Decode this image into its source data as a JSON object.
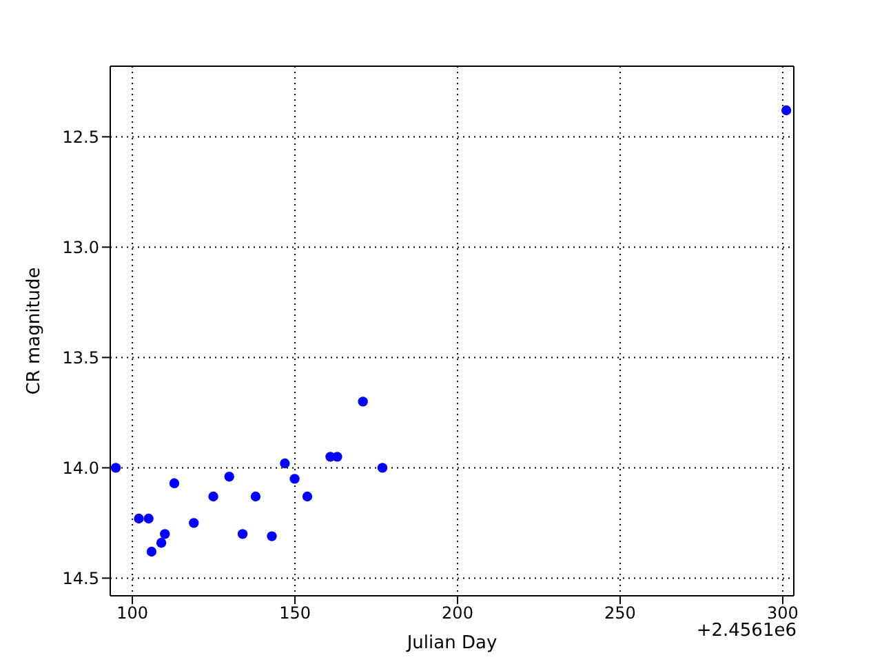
{
  "chart_data": {
    "type": "scatter",
    "xlabel": "Julian Day",
    "ylabel": "CR magnitude",
    "annotations": [
      "+2.4561e6"
    ],
    "x": [
      94.9,
      102.0,
      105.0,
      105.9,
      108.9,
      110.0,
      112.9,
      118.9,
      124.9,
      129.8,
      133.9,
      137.9,
      142.9,
      146.9,
      149.9,
      153.8,
      160.9,
      163.0,
      170.9,
      176.9,
      301.1
    ],
    "series": [
      {
        "color": "#0000ff",
        "values": [
          14.0,
          14.23,
          14.23,
          14.38,
          14.34,
          14.3,
          14.07,
          14.25,
          14.13,
          14.04,
          14.3,
          14.13,
          14.31,
          13.98,
          14.05,
          14.13,
          13.95,
          13.95,
          13.7,
          14.0,
          12.38
        ]
      }
    ],
    "xlim": [
      93.2,
      303.4
    ],
    "xticks": [
      100,
      150,
      200,
      250,
      300
    ],
    "ylim": [
      14.58,
      12.18
    ],
    "yticks": [
      12.5,
      {
        "value": 13,
        "label": "13.0"
      },
      13.5,
      {
        "value": 14,
        "label": "14.0"
      },
      14.5
    ],
    "grid": true,
    "marker": "circle"
  }
}
